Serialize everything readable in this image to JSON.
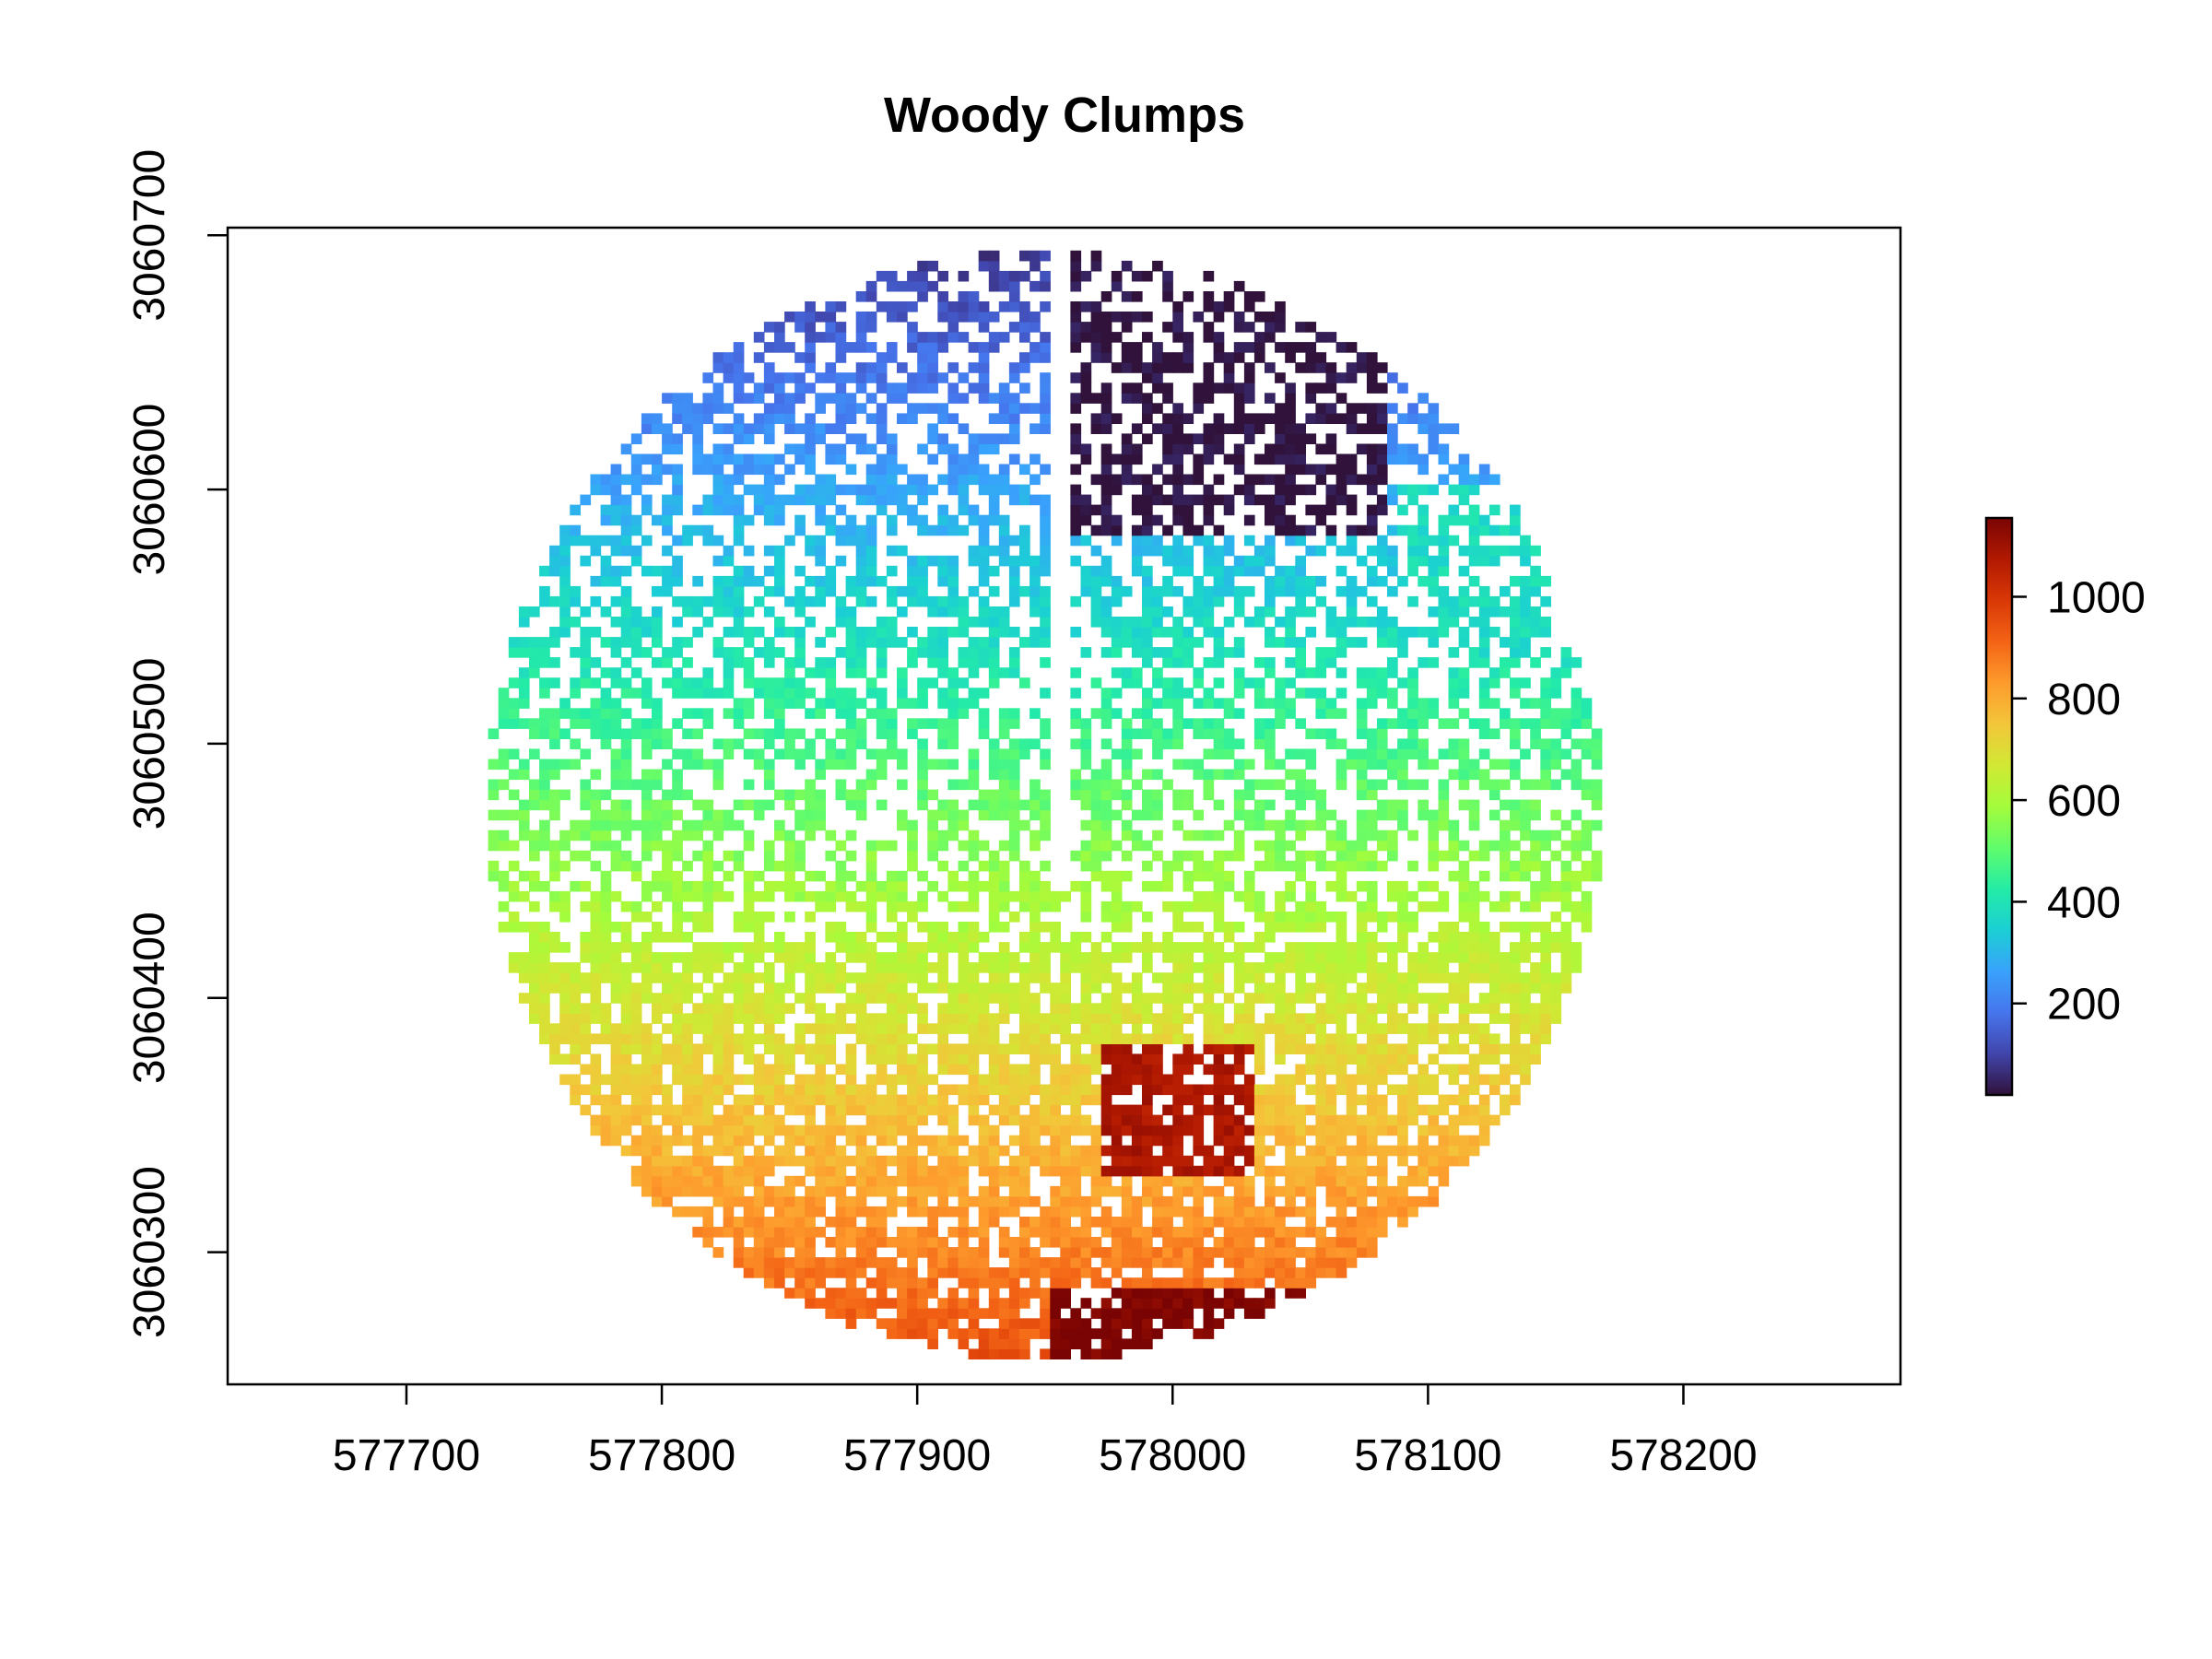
{
  "chart_data": {
    "type": "heatmap",
    "title": "Woody Clumps",
    "xlabel": "",
    "ylabel": "",
    "xlim": [
      577630,
      578285
    ],
    "ylim": [
      3060248,
      3060703
    ],
    "x_ticks": [
      "577700",
      "577800",
      "577900",
      "578000",
      "578100",
      "578200"
    ],
    "y_ticks": [
      "3060300",
      "3060400",
      "3060500",
      "3060600",
      "3060700"
    ],
    "legend": {
      "type": "colorbar",
      "placement": "right",
      "min": 20,
      "max": 1155,
      "ticks": [
        "200",
        "400",
        "600",
        "800",
        "1000"
      ],
      "palette": [
        "#30123b",
        "#4145ab",
        "#4675ed",
        "#39a2fc",
        "#1bcfd4",
        "#24eca6",
        "#61fc6c",
        "#a4fc3b",
        "#d1e834",
        "#f3c63a",
        "#fe9b2d",
        "#f36315",
        "#d93806",
        "#b11901",
        "#7a0403"
      ]
    },
    "raster": {
      "description_values": "clump id values 1-1155 rising from north to south across a circular plot",
      "center": [
        577950,
        3060476
      ],
      "radius": 218,
      "zones": [
        {
          "y_range": [
            3060650,
            3060703
          ],
          "x_range": [
            577830,
            577955
          ],
          "value": 80
        },
        {
          "y_range": [
            3060610,
            3060650
          ],
          "x_range": [
            577780,
            577955
          ],
          "value": 150
        },
        {
          "y_range": [
            3060560,
            3060610
          ],
          "x_range": [
            577740,
            577955
          ],
          "value": 280
        },
        {
          "y_range": [
            3060540,
            3060600
          ],
          "x_range": [
            578090,
            578170
          ],
          "value": 360
        },
        {
          "y_range": [
            3060500,
            3060560
          ],
          "x_range": [
            577730,
            578170
          ],
          "value": 470
        },
        {
          "y_range": [
            3060460,
            3060500
          ],
          "x_range": [
            577730,
            578170
          ],
          "value": 620
        },
        {
          "y_range": [
            3060420,
            3060460
          ],
          "x_range": [
            577730,
            578170
          ],
          "value": 760
        },
        {
          "y_range": [
            3060250,
            3060420
          ],
          "x_range": [
            577730,
            578170
          ],
          "value": 920
        },
        {
          "y_range": [
            3060580,
            3060703
          ],
          "x_range": [
            577955,
            578080
          ],
          "value": 20
        },
        {
          "y_range": [
            3060250,
            3060285
          ],
          "x_range": [
            577950,
            578060
          ],
          "value": 1150
        },
        {
          "y_range": [
            3060330,
            3060380
          ],
          "x_range": [
            577970,
            578030
          ],
          "value": 1080
        }
      ]
    }
  }
}
